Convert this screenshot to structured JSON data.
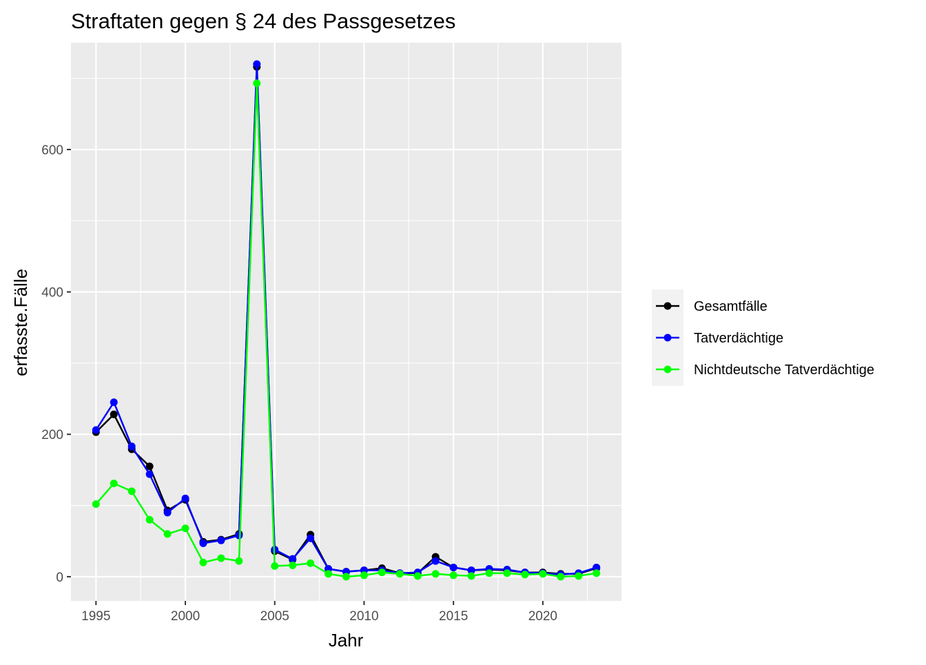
{
  "chart_data": {
    "type": "line",
    "title": "Straftaten gegen § 24 des Passgesetzes",
    "xlabel": "Jahr",
    "ylabel": "erfasste.Fälle",
    "x": [
      1995,
      1996,
      1997,
      1998,
      1999,
      2000,
      2001,
      2002,
      2003,
      2004,
      2005,
      2006,
      2007,
      2008,
      2009,
      2010,
      2011,
      2012,
      2013,
      2014,
      2015,
      2016,
      2017,
      2018,
      2019,
      2020,
      2021,
      2022,
      2023
    ],
    "xlim": [
      1993.6,
      2024.4
    ],
    "ylim": [
      -34,
      750
    ],
    "xticks": [
      1995,
      2000,
      2005,
      2010,
      2015,
      2020
    ],
    "yticks": [
      0,
      200,
      400,
      600
    ],
    "xminor": [
      1997.5,
      2002.5,
      2007.5,
      2012.5,
      2017.5,
      2022.5
    ],
    "yminor": [
      100,
      300,
      500,
      700
    ],
    "grid": true,
    "legend_position": "right",
    "series": [
      {
        "name": "Gesamtfälle",
        "color": "#000000",
        "values": [
          203,
          228,
          179,
          155,
          93,
          108,
          49,
          52,
          60,
          716,
          36,
          24,
          59,
          11,
          7,
          9,
          12,
          5,
          5,
          28,
          13,
          9,
          10,
          9,
          6,
          6,
          4,
          4,
          12
        ]
      },
      {
        "name": "Tatverdächtige",
        "color": "#0000ff",
        "values": [
          206,
          245,
          183,
          144,
          90,
          110,
          47,
          51,
          58,
          720,
          38,
          25,
          54,
          11,
          7,
          9,
          9,
          5,
          6,
          22,
          13,
          9,
          11,
          10,
          6,
          5,
          3,
          5,
          13
        ]
      },
      {
        "name": "Nichtdeutsche Tatverdächtige",
        "color": "#00ff00",
        "values": [
          102,
          131,
          120,
          80,
          60,
          68,
          20,
          26,
          22,
          693,
          15,
          16,
          19,
          4,
          0,
          2,
          6,
          4,
          1,
          4,
          2,
          1,
          5,
          5,
          3,
          4,
          0,
          1,
          5
        ]
      }
    ]
  }
}
